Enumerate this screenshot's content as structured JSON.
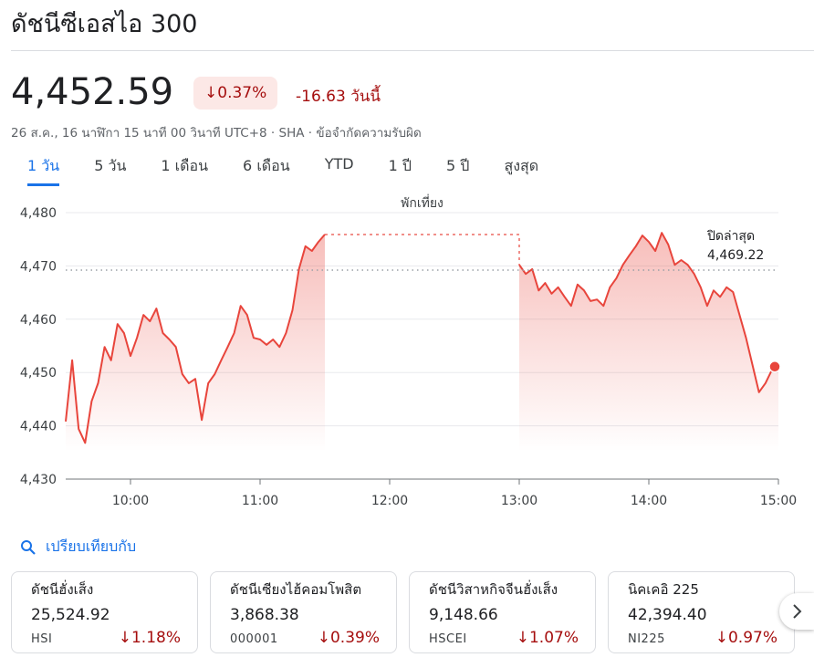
{
  "header": {
    "title": "ดัชนีซีเอสไอ 300"
  },
  "quote": {
    "price": "4,452.59",
    "change_percent": "0.37%",
    "change": "-16.63",
    "change_period": "วันนี้",
    "timestamp": "26 ส.ค., 16 นาฬิกา 15 นาที 00 วินาที UTC+8",
    "exchange": "SHA",
    "disclaimer": "ข้อจำกัดความรับผิด"
  },
  "tabs": [
    "1 วัน",
    "5 วัน",
    "1 เดือน",
    "6 เดือน",
    "YTD",
    "1 ปี",
    "5 ปี",
    "สูงสุด"
  ],
  "active_tab": 0,
  "chart_data": {
    "type": "line",
    "color": "#e8453c",
    "grid": true,
    "annotation": "พักเที่ยง",
    "x": [
      9.5,
      9.55,
      9.6,
      9.65,
      9.7,
      9.75,
      9.8,
      9.85,
      9.9,
      9.95,
      10,
      10.05,
      10.1,
      10.15,
      10.2,
      10.25,
      10.3,
      10.35,
      10.4,
      10.45,
      10.5,
      10.55,
      10.6,
      10.65,
      10.7,
      10.75,
      10.8,
      10.85,
      10.9,
      10.95,
      11,
      11.05,
      11.1,
      11.15,
      11.2,
      11.25,
      11.3,
      11.35,
      11.4,
      11.45,
      11.5,
      12.25,
      13,
      13.05,
      13.1,
      13.15,
      13.2,
      13.25,
      13.3,
      13.35,
      13.4,
      13.45,
      13.5,
      13.55,
      13.6,
      13.65,
      13.7,
      13.75,
      13.8,
      13.85,
      13.9,
      13.95,
      14,
      14.05,
      14.1,
      14.15,
      14.2,
      14.25,
      14.3,
      14.35,
      14.4,
      14.45,
      14.5,
      14.55,
      14.6,
      14.65,
      14.7,
      14.75,
      14.8,
      14.85,
      14.9,
      14.95,
      15
    ],
    "values": [
      4440.8,
      4452.3,
      4439.4,
      4436.8,
      4444.6,
      4448,
      4454.8,
      4452.3,
      4459.1,
      4457.4,
      4453.1,
      4456.5,
      4460.8,
      4459.6,
      4462,
      4457.4,
      4456.2,
      4454.8,
      4449.7,
      4448,
      4448.8,
      4441.1,
      4448,
      4449.7,
      4452.3,
      4454.8,
      4457.4,
      4462.5,
      4460.8,
      4456.5,
      4456.2,
      4455.2,
      4456.2,
      4454.8,
      4457.4,
      4461.7,
      4469.4,
      4473.7,
      4472.8,
      4474.5,
      4475.9,
      null,
      4470.2,
      4468.5,
      4469.4,
      4465.4,
      4466.8,
      4464.8,
      4466,
      4464.2,
      4462.5,
      4466.5,
      4465.4,
      4463.4,
      4463.7,
      4462.5,
      4466,
      4467.7,
      4470.2,
      4472,
      4473.7,
      4475.7,
      4474.5,
      4472.8,
      4476.2,
      4474,
      4470.2,
      4471.1,
      4470.2,
      4468.5,
      4466,
      4462.5,
      4465.4,
      4464.2,
      4466,
      4465.1,
      4460.8,
      4456.5,
      4451.4,
      4446.3,
      4448,
      4450.5,
      4451.1
    ],
    "xlim": [
      9.5,
      15
    ],
    "xticks": [
      {
        "value": 10,
        "label": "10:00"
      },
      {
        "value": 11,
        "label": "11:00"
      },
      {
        "value": 12,
        "label": "12:00"
      },
      {
        "value": 13,
        "label": "13:00"
      },
      {
        "value": 14,
        "label": "14:00"
      },
      {
        "value": 15,
        "label": "15:00"
      }
    ],
    "ylim": [
      4430,
      4480
    ],
    "yticks": [
      {
        "value": 4430,
        "label": "4,430"
      },
      {
        "value": 4440,
        "label": "4,440"
      },
      {
        "value": 4450,
        "label": "4,450"
      },
      {
        "value": 4460,
        "label": "4,460"
      },
      {
        "value": 4470,
        "label": "4,470"
      },
      {
        "value": 4480,
        "label": "4,480"
      }
    ],
    "previous_close": {
      "name": "ปิดล่าสุด",
      "value": 4469.22,
      "label": "4,469.22"
    }
  },
  "compare": {
    "label": "เปรียบเทียบกับ",
    "cards": [
      {
        "name": "ดัชนีฮั่งเส็ง",
        "price": "25,524.92",
        "symbol": "HSI",
        "change": "1.18%"
      },
      {
        "name": "ดัชนีเซียงไฮ้คอมโพสิต",
        "price": "3,868.38",
        "symbol": "000001",
        "change": "0.39%"
      },
      {
        "name": "ดัชนีวิสาหกิจจีนฮั่งเส็ง",
        "price": "9,148.66",
        "symbol": "HSCEI",
        "change": "1.07%"
      },
      {
        "name": "นิคเคอิ 225",
        "price": "42,394.40",
        "symbol": "NI225",
        "change": "0.97%"
      }
    ]
  }
}
